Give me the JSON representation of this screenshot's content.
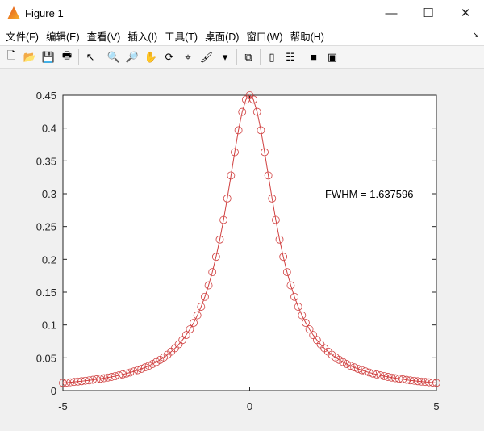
{
  "window": {
    "title": "Figure 1",
    "minimize": "—",
    "maximize": "☐",
    "close": "✕"
  },
  "menu": [
    "文件(F)",
    "编辑(E)",
    "查看(V)",
    "插入(I)",
    "工具(T)",
    "桌面(D)",
    "窗口(W)",
    "帮助(H)"
  ],
  "toolbar": [
    {
      "icon": "new-figure-icon",
      "glyph": "🗋"
    },
    {
      "icon": "open-icon",
      "glyph": "📂"
    },
    {
      "icon": "save-icon",
      "glyph": "💾"
    },
    {
      "icon": "print-icon",
      "glyph": "🖶"
    },
    {
      "sep": true
    },
    {
      "icon": "pointer-icon",
      "glyph": "↖"
    },
    {
      "sep": true
    },
    {
      "icon": "zoom-in-icon",
      "glyph": "🔍"
    },
    {
      "icon": "zoom-out-icon",
      "glyph": "🔎"
    },
    {
      "icon": "pan-icon",
      "glyph": "✋"
    },
    {
      "icon": "rotate-icon",
      "glyph": "⟳"
    },
    {
      "icon": "data-cursor-icon",
      "glyph": "⌖"
    },
    {
      "icon": "brush-icon",
      "glyph": "🖌"
    },
    {
      "icon": "brush-dropdown-icon",
      "glyph": "▾"
    },
    {
      "sep": true
    },
    {
      "icon": "link-plot-icon",
      "glyph": "⧉"
    },
    {
      "sep": true
    },
    {
      "icon": "colorbar-icon",
      "glyph": "▯"
    },
    {
      "icon": "legend-icon",
      "glyph": "☷"
    },
    {
      "sep": true
    },
    {
      "icon": "hide-plot-tools-icon",
      "glyph": "■"
    },
    {
      "icon": "show-plot-tools-icon",
      "glyph": "▣"
    }
  ],
  "chart_data": {
    "type": "line",
    "title": "",
    "xlabel": "",
    "ylabel": "",
    "xlim": [
      -5,
      5
    ],
    "ylim": [
      0,
      0.45
    ],
    "xticks": [
      "-5",
      "0",
      "5"
    ],
    "yticks": [
      "0",
      "0.05",
      "0.1",
      "0.15",
      "0.2",
      "0.25",
      "0.3",
      "0.35",
      "0.4",
      "0.45"
    ],
    "grid": false,
    "color": "#d04040",
    "marker": "circle",
    "annotation": "FWHM = 1.637596",
    "x_step": 0.1,
    "y_half": [
      0.45,
      0.4434,
      0.4247,
      0.3967,
      0.3633,
      0.3278,
      0.2928,
      0.26,
      0.2302,
      0.2038,
      0.1806,
      0.1604,
      0.1429,
      0.1278,
      0.1147,
      0.1033,
      0.0934,
      0.0847,
      0.0771,
      0.0705,
      0.0646,
      0.0594,
      0.0547,
      0.0506,
      0.0469,
      0.0436,
      0.0406,
      0.0379,
      0.0354,
      0.0332,
      0.0312,
      0.0293,
      0.0277,
      0.0261,
      0.0247,
      0.0233,
      0.0221,
      0.021,
      0.02,
      0.019,
      0.0181,
      0.0173,
      0.0165,
      0.0157,
      0.0151,
      0.0144,
      0.0138,
      0.0133,
      0.0127,
      0.0122,
      0.0118
    ]
  }
}
